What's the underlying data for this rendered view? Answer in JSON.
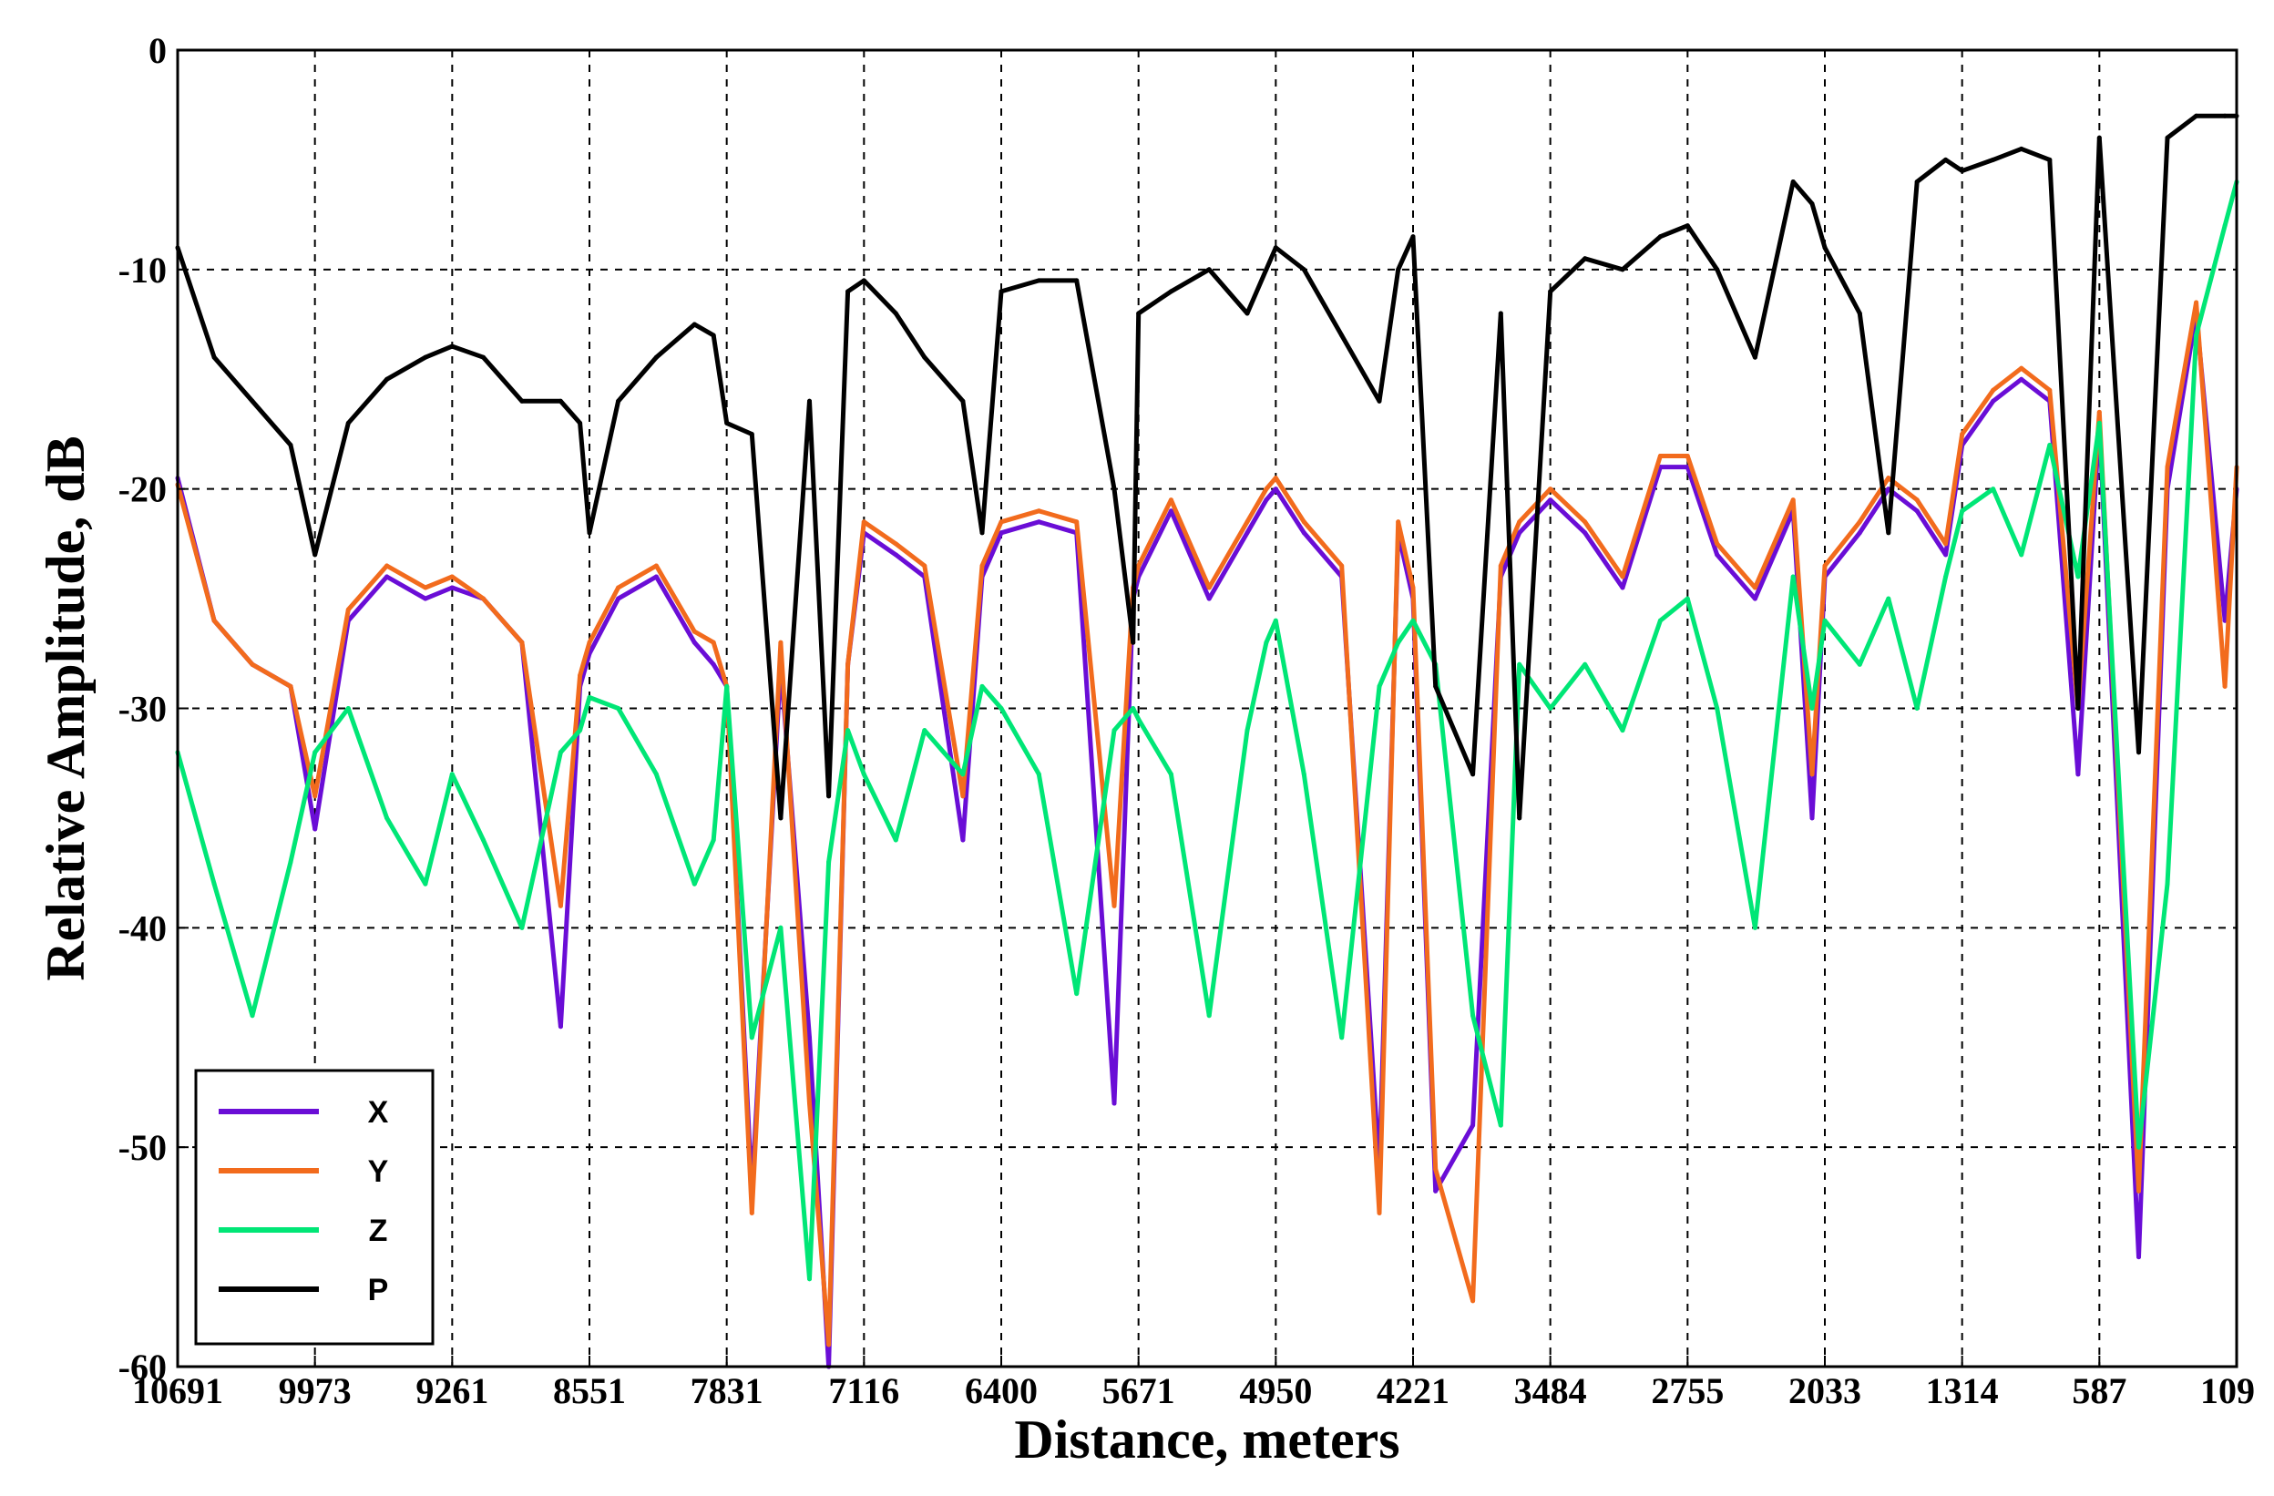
{
  "chart_data": {
    "type": "line",
    "title": "",
    "xlabel": "Distance, meters",
    "ylabel": "Relative Amplitude, dB",
    "ylim": [
      -60,
      0
    ],
    "xlim": [
      10691,
      109
    ],
    "y_ticks": [
      0,
      -10,
      -20,
      -30,
      -40,
      -50,
      -60
    ],
    "y_tick_labels": [
      "0",
      "-10",
      "-20",
      "-30",
      "-40",
      "-50",
      "-60"
    ],
    "x_ticks": [
      10691,
      9973,
      9261,
      8551,
      7831,
      7116,
      6400,
      5671,
      4950,
      4221,
      3484,
      2755,
      2033,
      1314,
      587,
      109
    ],
    "x_tick_labels": [
      "10691",
      "9973",
      "9261",
      "8551",
      "7831",
      "7116",
      "6400",
      "5671",
      "4950",
      "4221",
      "3484",
      "2755",
      "2033",
      "1314",
      "587",
      "109"
    ],
    "grid": true,
    "legend_position": "bottom-left",
    "x": [
      10691,
      10500,
      10300,
      10100,
      9973,
      9800,
      9600,
      9400,
      9261,
      9100,
      8900,
      8700,
      8600,
      8551,
      8400,
      8200,
      8000,
      7900,
      7831,
      7700,
      7550,
      7400,
      7300,
      7200,
      7116,
      6950,
      6800,
      6600,
      6500,
      6400,
      6200,
      6000,
      5800,
      5700,
      5671,
      5500,
      5300,
      5100,
      5000,
      4950,
      4800,
      4600,
      4400,
      4300,
      4221,
      4100,
      3900,
      3750,
      3650,
      3484,
      3300,
      3100,
      2900,
      2755,
      2600,
      2400,
      2200,
      2100,
      2033,
      1850,
      1700,
      1550,
      1400,
      1314,
      1150,
      1000,
      850,
      700,
      587,
      450,
      350,
      250,
      150,
      109
    ],
    "series": [
      {
        "name": "X",
        "color": "#6a0dd6",
        "values": [
          -19.5,
          -26,
          -28,
          -29,
          -35.5,
          -26,
          -24,
          -25,
          -24.5,
          -25,
          -27,
          -44.5,
          -29,
          -27.5,
          -25,
          -24,
          -27,
          -28,
          -29,
          -52,
          -28,
          -45,
          -60,
          -28,
          -22,
          -23,
          -24,
          -36,
          -24,
          -22,
          -21.5,
          -22,
          -48,
          -25,
          -24,
          -21,
          -25,
          -22,
          -20.5,
          -20,
          -22,
          -24,
          -51,
          -22,
          -25,
          -52,
          -49,
          -24,
          -22,
          -20.5,
          -22,
          -24.5,
          -19,
          -19,
          -23,
          -25,
          -21,
          -35,
          -24,
          -22,
          -20,
          -21,
          -23,
          -18,
          -16,
          -15,
          -16,
          -33,
          -17,
          -55,
          -20,
          -12,
          -26,
          -20
        ]
      },
      {
        "name": "Y",
        "color": "#f26b1d",
        "values": [
          -19.8,
          -26,
          -28,
          -29,
          -34,
          -25.5,
          -23.5,
          -24.5,
          -24,
          -25,
          -27,
          -39,
          -28.5,
          -27,
          -24.5,
          -23.5,
          -26.5,
          -27,
          -29,
          -53,
          -27,
          -48,
          -59,
          -28,
          -21.5,
          -22.5,
          -23.5,
          -34,
          -23.5,
          -21.5,
          -21,
          -21.5,
          -39,
          -24.5,
          -23.5,
          -20.5,
          -24.5,
          -21.5,
          -20,
          -19.5,
          -21.5,
          -23.5,
          -53,
          -21.5,
          -24.5,
          -51,
          -57,
          -23.5,
          -21.5,
          -20,
          -21.5,
          -24,
          -18.5,
          -18.5,
          -22.5,
          -24.5,
          -20.5,
          -33,
          -23.5,
          -21.5,
          -19.5,
          -20.5,
          -22.5,
          -17.5,
          -15.5,
          -14.5,
          -15.5,
          -30,
          -16.5,
          -52,
          -19,
          -11.5,
          -29,
          -19
        ]
      },
      {
        "name": "Z",
        "color": "#00e676",
        "values": [
          -32,
          -38,
          -44,
          -37,
          -32,
          -30,
          -35,
          -38,
          -33,
          -36,
          -40,
          -32,
          -31,
          -29.5,
          -30,
          -33,
          -38,
          -36,
          -29,
          -45,
          -40,
          -56,
          -37,
          -31,
          -33,
          -36,
          -31,
          -33,
          -29,
          -30,
          -33,
          -43,
          -31,
          -30,
          -30.5,
          -33,
          -44,
          -31,
          -27,
          -26,
          -33,
          -45,
          -29,
          -27,
          -26,
          -28,
          -44,
          -49,
          -28,
          -30,
          -28,
          -31,
          -26,
          -25,
          -30,
          -40,
          -24,
          -30,
          -26,
          -28,
          -25,
          -30,
          -24,
          -21,
          -20,
          -23,
          -18,
          -24,
          -17,
          -50,
          -38,
          -13,
          -8,
          -6
        ]
      },
      {
        "name": "P",
        "color": "#000000",
        "values": [
          -9,
          -14,
          -16,
          -18,
          -23,
          -17,
          -15,
          -14,
          -13.5,
          -14,
          -16,
          -16,
          -17,
          -22,
          -16,
          -14,
          -12.5,
          -13,
          -17,
          -17.5,
          -35,
          -16,
          -34,
          -11,
          -10.5,
          -12,
          -14,
          -16,
          -22,
          -11,
          -10.5,
          -10.5,
          -20,
          -27,
          -12,
          -11,
          -10,
          -12,
          -10,
          -9,
          -10,
          -13,
          -16,
          -10,
          -8.5,
          -29,
          -33,
          -12,
          -35,
          -11,
          -9.5,
          -10,
          -8.5,
          -8,
          -10,
          -14,
          -6,
          -7,
          -9,
          -12,
          -22,
          -6,
          -5,
          -5.5,
          -5,
          -4.5,
          -5,
          -30,
          -4,
          -32,
          -4,
          -3,
          -3,
          -3
        ]
      }
    ]
  },
  "legend": {
    "items": [
      {
        "label": "X",
        "color": "#6a0dd6"
      },
      {
        "label": "Y",
        "color": "#f26b1d"
      },
      {
        "label": "Z",
        "color": "#00e676"
      },
      {
        "label": "P",
        "color": "#000000"
      }
    ]
  }
}
